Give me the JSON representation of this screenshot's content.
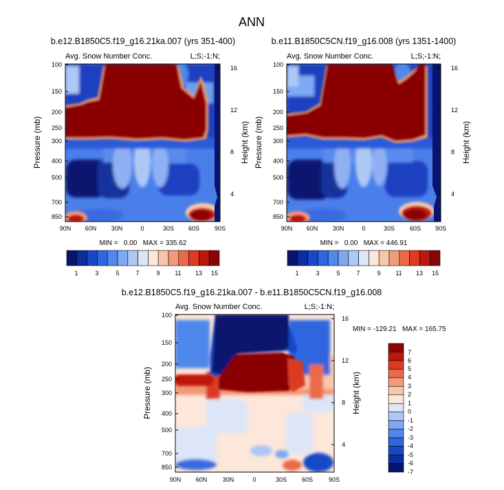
{
  "page": {
    "title": "ANN"
  },
  "chart_data": [
    {
      "type": "heatmap",
      "id": "p1",
      "title": "b.e12.B1850C5.f19_g16.21ka.007 (yrs 351-400)",
      "left_label": "Avg. Snow Number Conc.",
      "right_label": "L;S;-1:N;",
      "xlabel": "",
      "ylabel": "Pressure (mb)",
      "ylabel_right": "Height (km)",
      "x_ticks": [
        "90N",
        "60N",
        "30N",
        "0",
        "30S",
        "60S",
        "90S"
      ],
      "y_ticks": [
        "100",
        "150",
        "200",
        "250",
        "300",
        "400",
        "500",
        "700",
        "850"
      ],
      "y2_ticks": [
        "16",
        "12",
        "8",
        "4"
      ],
      "stats": "MIN =   0.00   MAX = 335.62",
      "colorbar_labels": [
        "1",
        "3",
        "5",
        "7",
        "9",
        "11",
        "13",
        "15"
      ],
      "colorbar_levels": [
        1,
        2,
        3,
        4,
        5,
        6,
        7,
        8,
        9,
        10,
        11,
        12,
        13,
        14,
        15
      ]
    },
    {
      "type": "heatmap",
      "id": "p2",
      "title": "b.e11.B1850C5CN.f19_g16.008 (yrs 1351-1400)",
      "left_label": "Avg. Snow Number Conc.",
      "right_label": "L;S;-1:N;",
      "xlabel": "",
      "ylabel": "Pressure (mb)",
      "ylabel_right": "Height (km)",
      "x_ticks": [
        "90N",
        "60N",
        "30N",
        "0",
        "30S",
        "60S",
        "90S"
      ],
      "y_ticks": [
        "100",
        "150",
        "200",
        "250",
        "300",
        "400",
        "500",
        "700",
        "850"
      ],
      "y2_ticks": [
        "16",
        "12",
        "8",
        "4"
      ],
      "stats": "MIN =   0.00   MAX = 446.91",
      "colorbar_labels": [
        "1",
        "3",
        "5",
        "7",
        "9",
        "11",
        "13",
        "15"
      ],
      "colorbar_levels": [
        1,
        2,
        3,
        4,
        5,
        6,
        7,
        8,
        9,
        10,
        11,
        12,
        13,
        14,
        15
      ]
    },
    {
      "type": "heatmap",
      "id": "p3",
      "title": "b.e12.B1850C5.f19_g16.21ka.007 - b.e11.B1850C5CN.f19_g16.008",
      "left_label": "Avg. Snow Number Conc.",
      "right_label": "L;S;-1:N;",
      "xlabel": "",
      "ylabel": "Pressure (mb)",
      "ylabel_right": "Height (km)",
      "x_ticks": [
        "90N",
        "60N",
        "30N",
        "0",
        "30S",
        "60S",
        "90S"
      ],
      "y_ticks": [
        "100",
        "150",
        "200",
        "250",
        "300",
        "400",
        "500",
        "700",
        "850"
      ],
      "y2_ticks": [
        "16",
        "12",
        "8",
        "4"
      ],
      "stats": "MIN = -129.21   MAX = 165.75",
      "colorbar_labels": [
        "7",
        "6",
        "5",
        "4",
        "3",
        "2",
        "1",
        "0",
        "-1",
        "-2",
        "-3",
        "-4",
        "-5",
        "-6",
        "-7"
      ],
      "colorbar_levels": [
        7,
        6,
        5,
        4,
        3,
        2,
        1,
        0,
        -1,
        -2,
        -3,
        -4,
        -5,
        -6,
        -7
      ]
    }
  ],
  "colors": {
    "palette": [
      "#08146e",
      "#0c2ca0",
      "#1848c8",
      "#2e66e0",
      "#5088ec",
      "#7ea8f2",
      "#aec8f6",
      "#dce6f8",
      "#fde6da",
      "#f8c6aa",
      "#f29a78",
      "#ea6a48",
      "#dc3a22",
      "#bc1810",
      "#8a0606"
    ],
    "diff_palette": [
      "#8a0606",
      "#bc1810",
      "#dc3a22",
      "#ea6a48",
      "#f29a78",
      "#f8c6aa",
      "#fde6da",
      "#dce6f8",
      "#aec8f6",
      "#7ea8f2",
      "#5088ec",
      "#2e66e0",
      "#1848c8",
      "#0c2ca0",
      "#08146e"
    ]
  }
}
